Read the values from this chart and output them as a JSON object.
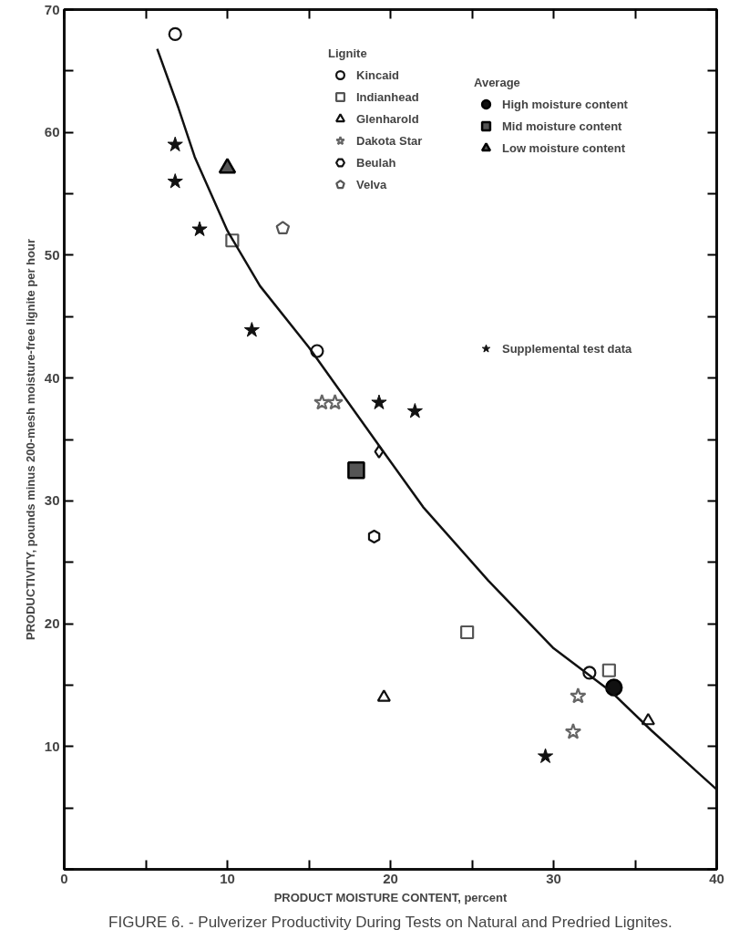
{
  "chart_data": {
    "type": "scatter",
    "xlabel": "PRODUCT MOISTURE CONTENT, percent",
    "ylabel": "PRODUCTIVITY, pounds minus 200-mesh moisture-free lignite per hour",
    "legend_title": "Lignite",
    "annotations": [
      "FIGURE 6. - Pulverizer Productivity During Tests on Natural and Predried Lignites.",
      "Average"
    ],
    "xlim": [
      0,
      40
    ],
    "ylim": [
      0,
      70
    ],
    "xticks": [
      0,
      {
        "value": 5,
        "label": null
      },
      10,
      {
        "value": 15,
        "label": null
      },
      20,
      {
        "value": 25,
        "label": null
      },
      30,
      {
        "value": 35,
        "label": null
      },
      40
    ],
    "yticks": [
      {
        "value": 0,
        "label": null
      },
      {
        "value": 5,
        "label": null
      },
      10,
      {
        "value": 15,
        "label": null
      },
      20,
      {
        "value": 25,
        "label": null
      },
      30,
      {
        "value": 35,
        "label": null
      },
      40,
      {
        "value": 45,
        "label": null
      },
      50,
      {
        "value": 55,
        "label": null
      },
      60,
      {
        "value": 65,
        "label": null
      },
      70
    ],
    "grid": false,
    "legend": "top right",
    "series": [
      {
        "name": "Kincaid",
        "color": "#111111",
        "marker": "circle",
        "x": [
          6.8,
          15.5,
          32.2
        ],
        "values": [
          68.0,
          42.2,
          16.0
        ]
      },
      {
        "name": "Indianhead",
        "color": "#555555",
        "marker": "square",
        "x": [
          10.3,
          24.7,
          33.4
        ],
        "values": [
          51.2,
          19.3,
          16.2
        ]
      },
      {
        "name": "Glenharold",
        "color": "#111111",
        "marker": "triangle",
        "x": [
          19.6,
          35.8
        ],
        "values": [
          14.0,
          12.1
        ]
      },
      {
        "color": "#111111",
        "marker": "diamond",
        "x": [
          19.3
        ],
        "values": [
          34.0
        ]
      },
      {
        "name": "Dakota Star",
        "color": "#666666",
        "marker": "star",
        "x": [
          15.8,
          16.6,
          31.5,
          31.2
        ],
        "values": [
          38.0,
          38.0,
          14.1,
          11.2
        ]
      },
      {
        "name": "Beulah",
        "color": "#111111",
        "x": [
          19.0
        ],
        "values": [
          27.1
        ]
      },
      {
        "name": "Velva",
        "color": "#555555",
        "x": [
          13.4
        ],
        "values": [
          52.2
        ]
      },
      {
        "name": "High moisture content",
        "color": "#111111",
        "marker": "circle",
        "x": [
          33.7
        ],
        "values": [
          14.8
        ]
      },
      {
        "name": "Mid moisture content",
        "color": "#555555",
        "marker": "square",
        "x": [
          17.9
        ],
        "values": [
          32.5
        ]
      },
      {
        "name": "Low moisture content",
        "color": "#555555",
        "marker": "triangle",
        "x": [
          10.0
        ],
        "values": [
          57.1
        ]
      },
      {
        "name": "Supplemental test data",
        "color": "#111111",
        "marker": "star",
        "x": [
          6.8,
          6.8,
          8.3,
          11.5,
          19.3,
          21.5,
          29.5
        ],
        "values": [
          59.0,
          56.0,
          52.1,
          43.9,
          38.0,
          37.3,
          9.2
        ]
      },
      {
        "type": "line",
        "color": "#111111",
        "line_style": "solid",
        "x": [
          5.7,
          7,
          8,
          10,
          12,
          15,
          19.3,
          22,
          26,
          30,
          33.5,
          36,
          40
        ],
        "values": [
          66.8,
          62,
          58,
          52,
          47.5,
          42.5,
          34.5,
          29.5,
          23.5,
          18,
          14.5,
          11.3,
          6.5
        ]
      }
    ]
  }
}
